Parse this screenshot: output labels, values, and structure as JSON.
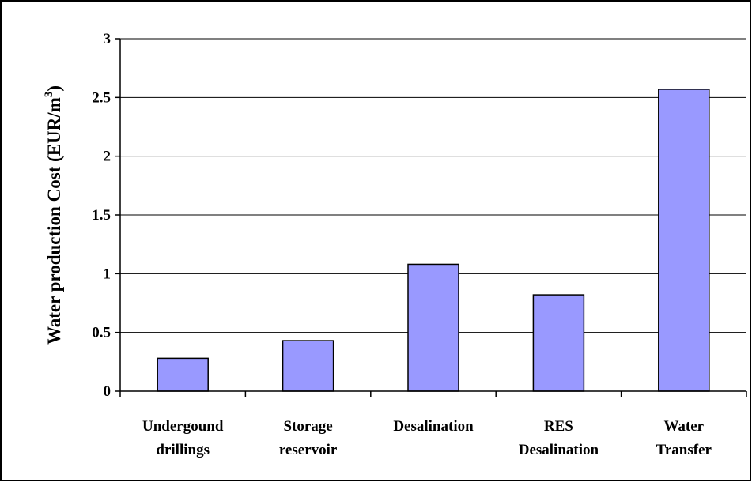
{
  "chart_data": {
    "type": "bar",
    "categories": [
      [
        "Undergound",
        "drillings"
      ],
      [
        "Storage",
        "reservoir"
      ],
      [
        "Desalination"
      ],
      [
        "RES",
        "Desalination"
      ],
      [
        "Water",
        "Transfer"
      ]
    ],
    "values": [
      0.28,
      0.43,
      1.08,
      0.82,
      2.57
    ],
    "ylabel": "Water production Cost (EUR/m",
    "ylabel_superscript": "3",
    "ylabel_suffix": ")",
    "ylim": [
      0,
      3
    ],
    "yticks": [
      0,
      0.5,
      1,
      1.5,
      2,
      2.5,
      3
    ],
    "ytick_labels": [
      "0",
      "0.5",
      "1",
      "1.5",
      "2",
      "2.5",
      "3"
    ],
    "grid": true,
    "legend": "none",
    "bar_color": "#9999ff"
  }
}
